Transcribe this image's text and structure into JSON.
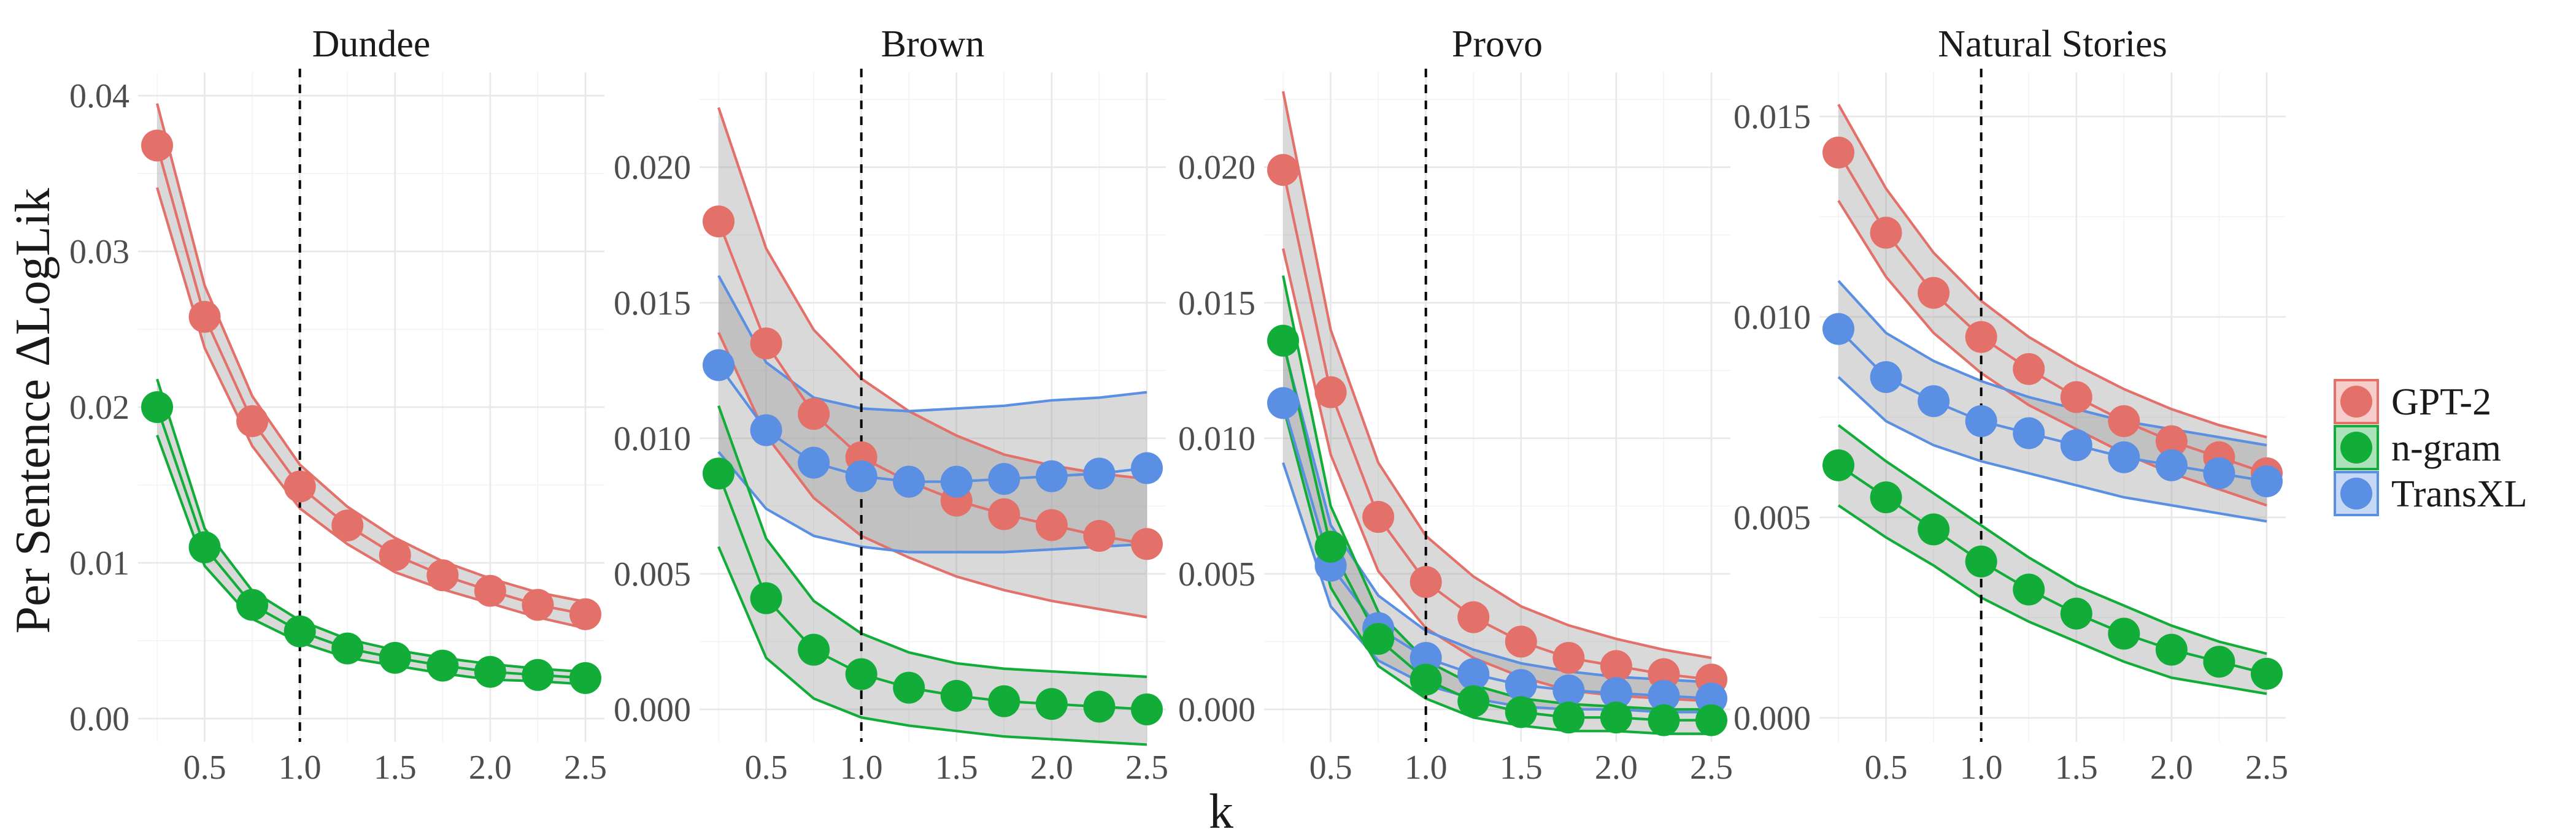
{
  "chart_data": {
    "type": "line",
    "y_label": "Per Sentence ΔLogLik",
    "x_label": "k",
    "reference_line_x": 1.0,
    "x_ticks": [
      0.5,
      1.0,
      1.5,
      2.0,
      2.5
    ],
    "x_tick_labels": [
      "0.5",
      "1.0",
      "1.5",
      "2.0",
      "2.5"
    ],
    "xlim": [
      0.15,
      2.6
    ],
    "k_values": [
      0.25,
      0.5,
      0.75,
      1.0,
      1.25,
      1.5,
      1.75,
      2.0,
      2.25,
      2.5
    ],
    "legend": {
      "placement": "right",
      "entries": [
        {
          "name": "GPT-2",
          "color": "#E4706A"
        },
        {
          "name": "n-gram",
          "color": "#12AD39"
        },
        {
          "name": "TransXL",
          "color": "#5B8FE3"
        }
      ]
    },
    "panels": [
      {
        "title": "Dundee",
        "ylim": [
          -0.0015,
          0.0415
        ],
        "y_ticks": [
          0.0,
          0.01,
          0.02,
          0.03,
          0.04
        ],
        "y_tick_labels": [
          "0.00",
          "0.01",
          "0.02",
          "0.03",
          "0.04"
        ],
        "series": [
          {
            "name": "GPT-2",
            "values": [
              0.0368,
              0.0258,
              0.0191,
              0.0149,
              0.0124,
              0.0105,
              0.0092,
              0.0082,
              0.0073,
              0.0067
            ],
            "upper": [
              0.0395,
              0.0278,
              0.0207,
              0.0163,
              0.0136,
              0.0116,
              0.0101,
              0.009,
              0.0081,
              0.0075
            ],
            "lower": [
              0.0341,
              0.0238,
              0.0175,
              0.0135,
              0.0112,
              0.0094,
              0.0083,
              0.0074,
              0.0065,
              0.0058
            ]
          },
          {
            "name": "n-gram",
            "values": [
              0.02,
              0.011,
              0.0073,
              0.0056,
              0.0045,
              0.0039,
              0.0034,
              0.003,
              0.0028,
              0.0026
            ],
            "upper": [
              0.0218,
              0.0122,
              0.0082,
              0.0063,
              0.0051,
              0.0044,
              0.0039,
              0.0035,
              0.0032,
              0.003
            ],
            "lower": [
              0.0182,
              0.0098,
              0.0064,
              0.0049,
              0.0039,
              0.0034,
              0.0029,
              0.0025,
              0.0024,
              0.0022
            ]
          }
        ]
      },
      {
        "title": "Brown",
        "ylim": [
          -0.0012,
          0.0235
        ],
        "y_ticks": [
          0.0,
          0.005,
          0.01,
          0.015,
          0.02
        ],
        "y_tick_labels": [
          "0.000",
          "0.005",
          "0.010",
          "0.015",
          "0.020"
        ],
        "series": [
          {
            "name": "GPT-2",
            "values": [
              0.018,
              0.0135,
              0.0109,
              0.0093,
              0.0084,
              0.0077,
              0.0072,
              0.0068,
              0.0064,
              0.0061
            ],
            "upper": [
              0.0222,
              0.017,
              0.014,
              0.0122,
              0.011,
              0.0101,
              0.0094,
              0.009,
              0.0087,
              0.0085
            ],
            "lower": [
              0.0139,
              0.0101,
              0.0078,
              0.0064,
              0.0056,
              0.0049,
              0.0044,
              0.004,
              0.0037,
              0.0034
            ]
          },
          {
            "name": "TransXL",
            "values": [
              0.0127,
              0.0103,
              0.0091,
              0.0086,
              0.0084,
              0.0084,
              0.0085,
              0.0086,
              0.0087,
              0.0089
            ],
            "upper": [
              0.016,
              0.0128,
              0.0115,
              0.0111,
              0.011,
              0.0111,
              0.0112,
              0.0114,
              0.0115,
              0.0117
            ],
            "lower": [
              0.0095,
              0.0074,
              0.0064,
              0.006,
              0.0058,
              0.0058,
              0.0058,
              0.0059,
              0.006,
              0.0061
            ]
          },
          {
            "name": "n-gram",
            "values": [
              0.0087,
              0.0041,
              0.0022,
              0.0013,
              0.0008,
              0.0005,
              0.0003,
              0.0002,
              0.0001,
              0.0
            ],
            "upper": [
              0.0112,
              0.0063,
              0.004,
              0.0028,
              0.0021,
              0.0017,
              0.0015,
              0.0014,
              0.0013,
              0.0012
            ],
            "lower": [
              0.006,
              0.0019,
              0.0004,
              -0.0003,
              -0.0006,
              -0.0008,
              -0.001,
              -0.0011,
              -0.0012,
              -0.0013
            ]
          }
        ]
      },
      {
        "title": "Provo",
        "ylim": [
          -0.0012,
          0.0235
        ],
        "y_ticks": [
          0.0,
          0.005,
          0.01,
          0.015,
          0.02
        ],
        "y_tick_labels": [
          "0.000",
          "0.005",
          "0.010",
          "0.015",
          "0.020"
        ],
        "series": [
          {
            "name": "GPT-2",
            "values": [
              0.0199,
              0.0117,
              0.0071,
              0.0047,
              0.0034,
              0.0025,
              0.0019,
              0.0016,
              0.0013,
              0.0011
            ],
            "upper": [
              0.0228,
              0.014,
              0.0091,
              0.0064,
              0.0049,
              0.0038,
              0.0031,
              0.0026,
              0.0022,
              0.0019
            ],
            "lower": [
              0.017,
              0.0094,
              0.0051,
              0.003,
              0.0019,
              0.0012,
              0.0007,
              0.0005,
              0.0004,
              0.0003
            ]
          },
          {
            "name": "TransXL",
            "values": [
              0.0113,
              0.0053,
              0.003,
              0.0019,
              0.0013,
              0.0009,
              0.0007,
              0.0006,
              0.0005,
              0.0004
            ],
            "upper": [
              0.0135,
              0.0068,
              0.0042,
              0.0029,
              0.0022,
              0.0017,
              0.0014,
              0.0012,
              0.0011,
              0.001
            ],
            "lower": [
              0.0091,
              0.0038,
              0.0018,
              0.0009,
              0.0004,
              0.0001,
              0.0,
              0.0,
              -0.0001,
              -0.0001
            ]
          },
          {
            "name": "n-gram",
            "values": [
              0.0136,
              0.006,
              0.0026,
              0.0011,
              0.0003,
              -0.0001,
              -0.0003,
              -0.0003,
              -0.0004,
              -0.0004
            ],
            "upper": [
              0.016,
              0.0075,
              0.0036,
              0.0018,
              0.0009,
              0.0004,
              0.0002,
              0.0001,
              0.0,
              0.0
            ],
            "lower": [
              0.0112,
              0.0045,
              0.0016,
              0.0004,
              -0.0003,
              -0.0006,
              -0.0008,
              -0.0008,
              -0.0009,
              -0.0009
            ]
          }
        ]
      },
      {
        "title": "Natural Stories",
        "ylim": [
          -0.0006,
          0.0161
        ],
        "y_ticks": [
          0.0,
          0.005,
          0.01,
          0.015
        ],
        "y_tick_labels": [
          "0.000",
          "0.005",
          "0.010",
          "0.015"
        ],
        "series": [
          {
            "name": "GPT-2",
            "values": [
              0.0141,
              0.0121,
              0.0106,
              0.0095,
              0.0087,
              0.008,
              0.0074,
              0.0069,
              0.0065,
              0.0061
            ],
            "upper": [
              0.0153,
              0.0132,
              0.0116,
              0.0104,
              0.0095,
              0.0088,
              0.0082,
              0.0077,
              0.0073,
              0.007
            ],
            "lower": [
              0.0129,
              0.011,
              0.0096,
              0.0086,
              0.0078,
              0.0072,
              0.0066,
              0.0061,
              0.0057,
              0.0053
            ]
          },
          {
            "name": "TransXL",
            "values": [
              0.0097,
              0.0085,
              0.0079,
              0.0074,
              0.0071,
              0.0068,
              0.0065,
              0.0063,
              0.0061,
              0.0059
            ],
            "upper": [
              0.0109,
              0.0096,
              0.0089,
              0.0084,
              0.008,
              0.0077,
              0.0074,
              0.0072,
              0.007,
              0.0068
            ],
            "lower": [
              0.0085,
              0.0074,
              0.0068,
              0.0064,
              0.0061,
              0.0058,
              0.0055,
              0.0053,
              0.0051,
              0.0049
            ]
          },
          {
            "name": "n-gram",
            "values": [
              0.0063,
              0.0055,
              0.0047,
              0.0039,
              0.0032,
              0.0026,
              0.0021,
              0.0017,
              0.0014,
              0.0011
            ],
            "upper": [
              0.0073,
              0.0064,
              0.0056,
              0.0048,
              0.004,
              0.0033,
              0.0028,
              0.0023,
              0.0019,
              0.0016
            ],
            "lower": [
              0.0053,
              0.0045,
              0.0038,
              0.003,
              0.0024,
              0.0019,
              0.0014,
              0.001,
              0.0008,
              0.0006
            ]
          }
        ]
      }
    ]
  }
}
